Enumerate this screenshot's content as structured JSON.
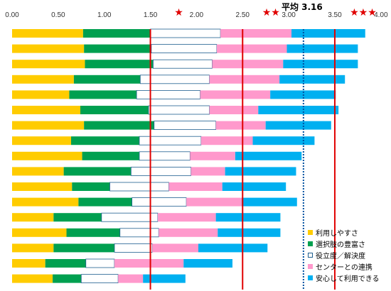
{
  "chart_data": {
    "type": "bar",
    "orientation": "horizontal",
    "stacked": true,
    "xlim": [
      0,
      4.0
    ],
    "xticks": [
      "0.00",
      "0.50",
      "1.00",
      "1.50",
      "2.00",
      "2.50",
      "3.00",
      "3.50",
      "4.00"
    ],
    "grid": false,
    "legend_position": "bottom-right",
    "series": [
      {
        "name": "利用しやすさ",
        "color": "#FFCC00",
        "values": [
          0.77,
          0.78,
          0.79,
          0.67,
          0.62,
          0.74,
          0.78,
          0.64,
          0.76,
          0.56,
          0.65,
          0.72,
          0.45,
          0.59,
          0.45,
          0.36,
          0.44
        ]
      },
      {
        "name": "選択肢の豊富さ",
        "color": "#00A050",
        "values": [
          0.73,
          0.73,
          0.74,
          0.72,
          0.73,
          0.74,
          0.76,
          0.74,
          0.62,
          0.73,
          0.41,
          0.58,
          0.52,
          0.58,
          0.66,
          0.44,
          0.31
        ]
      },
      {
        "name": "役立度／解決度",
        "color": "#FFFFFF",
        "values": [
          0.76,
          0.71,
          0.64,
          0.75,
          0.69,
          0.66,
          0.67,
          0.67,
          0.55,
          0.65,
          0.64,
          0.59,
          0.61,
          0.42,
          0.41,
          0.31,
          0.4
        ]
      },
      {
        "name": "センターとの連携",
        "color": "#FF99CC",
        "values": [
          0.77,
          0.76,
          0.77,
          0.76,
          0.76,
          0.53,
          0.54,
          0.56,
          0.49,
          0.37,
          0.58,
          0.6,
          0.63,
          0.64,
          0.5,
          0.75,
          0.27
        ]
      },
      {
        "name": "安心して利用できる",
        "color": "#00B0F0",
        "values": [
          0.8,
          0.77,
          0.81,
          0.71,
          0.71,
          0.87,
          0.71,
          0.67,
          0.72,
          0.77,
          0.69,
          0.6,
          0.7,
          0.68,
          0.75,
          0.53,
          0.46
        ]
      }
    ],
    "reference_lines": [
      {
        "value": 1.5,
        "color": "#E00000",
        "style": "solid",
        "label": "★"
      },
      {
        "value": 2.5,
        "color": "#E00000",
        "style": "solid",
        "label": "★★"
      },
      {
        "value": 3.5,
        "color": "#E00000",
        "style": "solid",
        "label": "★★★"
      },
      {
        "value": 3.16,
        "color": "#0050A0",
        "style": "dotted",
        "label": "平均 3.16"
      }
    ]
  }
}
